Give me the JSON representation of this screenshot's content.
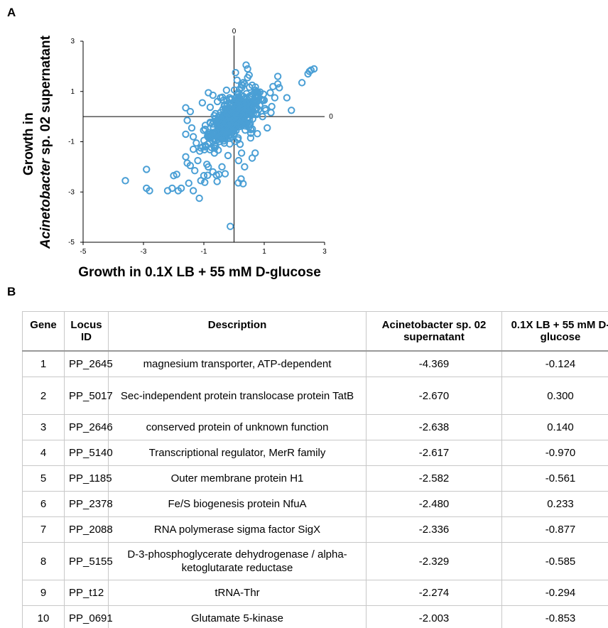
{
  "panel_a_label": "A",
  "panel_b_label": "B",
  "chart_data": {
    "type": "scatter",
    "xlabel": "Growth in 0.1X LB + 55 mM D-glucose",
    "ylabel_parts": [
      "Growth in ",
      "Acinetobacter",
      " sp. 02 supernatant"
    ],
    "xlim": [
      -5,
      3
    ],
    "ylim": [
      -5,
      3
    ],
    "x_ticks": [
      "-5",
      "-3",
      "-1",
      "1",
      "3"
    ],
    "y_ticks": [
      "3",
      "1",
      "-1",
      "-3",
      "-5"
    ],
    "axis_zero_label_x": "0",
    "axis_zero_label_y": "0",
    "grid": false,
    "marker_color": "#4a9fd5",
    "points": [
      [
        -0.124,
        -4.369
      ],
      [
        0.3,
        -2.67
      ],
      [
        0.14,
        -2.638
      ],
      [
        -0.97,
        -2.617
      ],
      [
        -0.561,
        -2.582
      ],
      [
        0.233,
        -2.48
      ],
      [
        -0.877,
        -2.336
      ],
      [
        -0.585,
        -2.329
      ],
      [
        -0.294,
        -2.274
      ],
      [
        -0.853,
        -2.003
      ],
      [
        -3.6,
        -2.55
      ],
      [
        -2.9,
        -2.1
      ],
      [
        -2.9,
        -2.85
      ],
      [
        -2.8,
        -2.95
      ],
      [
        -2.2,
        -2.95
      ],
      [
        -2.05,
        -2.85
      ],
      [
        -1.85,
        -2.95
      ],
      [
        -1.75,
        -2.85
      ],
      [
        -2.0,
        -2.35
      ],
      [
        -1.9,
        -2.3
      ],
      [
        -1.35,
        -2.95
      ],
      [
        -1.15,
        -3.25
      ],
      [
        -1.5,
        -2.65
      ],
      [
        -1.1,
        -2.55
      ],
      [
        -1.55,
        -1.85
      ],
      [
        -1.45,
        -1.95
      ],
      [
        -1.3,
        -2.15
      ],
      [
        -1.0,
        -2.35
      ],
      [
        -1.6,
        -1.6
      ],
      [
        -1.2,
        -1.75
      ],
      [
        -0.9,
        -1.9
      ],
      [
        -0.7,
        -2.2
      ],
      [
        -0.5,
        -2.3
      ],
      [
        -0.4,
        -2.0
      ],
      [
        -1.6,
        0.35
      ],
      [
        -1.45,
        0.2
      ],
      [
        -1.55,
        -0.15
      ],
      [
        -1.4,
        -0.45
      ],
      [
        -1.6,
        -0.7
      ],
      [
        -1.35,
        -0.8
      ],
      [
        -1.25,
        -1.05
      ],
      [
        -1.35,
        -1.3
      ],
      [
        -1.1,
        -1.25
      ],
      [
        -1.05,
        0.55
      ],
      [
        -0.85,
        0.95
      ],
      [
        -0.7,
        0.85
      ],
      [
        -0.55,
        0.6
      ],
      [
        -0.45,
        0.75
      ],
      [
        -0.35,
        0.65
      ],
      [
        -0.25,
        1.05
      ],
      [
        -0.15,
        0.75
      ],
      [
        0.05,
        1.75
      ],
      [
        0.1,
        1.45
      ],
      [
        0.25,
        1.15
      ],
      [
        0.3,
        1.35
      ],
      [
        0.45,
        1.55
      ],
      [
        0.5,
        1.65
      ],
      [
        0.4,
        2.05
      ],
      [
        0.45,
        1.9
      ],
      [
        0.6,
        1.25
      ],
      [
        0.7,
        1.05
      ],
      [
        0.8,
        0.95
      ],
      [
        0.65,
        0.55
      ],
      [
        0.85,
        0.45
      ],
      [
        1.0,
        0.65
      ],
      [
        1.05,
        0.25
      ],
      [
        1.2,
        0.95
      ],
      [
        1.25,
        0.4
      ],
      [
        1.35,
        0.75
      ],
      [
        1.5,
        1.15
      ],
      [
        1.45,
        1.3
      ],
      [
        1.45,
        1.6
      ],
      [
        1.75,
        0.75
      ],
      [
        1.1,
        -0.45
      ],
      [
        1.9,
        0.25
      ],
      [
        2.25,
        1.35
      ],
      [
        2.45,
        1.7
      ],
      [
        2.5,
        1.8
      ],
      [
        2.55,
        1.85
      ],
      [
        2.65,
        1.9
      ],
      [
        0.2,
        -1.1
      ],
      [
        0.55,
        -0.85
      ],
      [
        0.7,
        -1.45
      ],
      [
        0.25,
        -1.45
      ],
      [
        0.15,
        -1.75
      ],
      [
        0.6,
        -1.65
      ],
      [
        0.35,
        -2.0
      ],
      [
        -0.2,
        -1.55
      ],
      [
        -0.65,
        -1.45
      ],
      [
        -0.95,
        -1.15
      ],
      [
        -0.8,
        -0.85
      ],
      [
        0.35,
        1.3
      ]
    ]
  },
  "table": {
    "headers": [
      "Gene",
      "Locus ID",
      "Description",
      "Acinetobacter sp. 02 supernatant",
      "0.1X LB + 55 mM D-glucose"
    ],
    "rows": [
      [
        "1",
        "PP_2645",
        "magnesium transporter, ATP-dependent",
        "-4.369",
        "-0.124"
      ],
      [
        "2",
        "PP_5017",
        "Sec-independent protein translocase protein TatB",
        "-2.670",
        "0.300"
      ],
      [
        "3",
        "PP_2646",
        "conserved protein of unknown function",
        "-2.638",
        "0.140"
      ],
      [
        "4",
        "PP_5140",
        "Transcriptional regulator, MerR family",
        "-2.617",
        "-0.970"
      ],
      [
        "5",
        "PP_1185",
        "Outer membrane protein H1",
        "-2.582",
        "-0.561"
      ],
      [
        "6",
        "PP_2378",
        "Fe/S biogenesis protein NfuA",
        "-2.480",
        "0.233"
      ],
      [
        "7",
        "PP_2088",
        "RNA polymerase sigma factor SigX",
        "-2.336",
        "-0.877"
      ],
      [
        "8",
        "PP_5155",
        "D-3-phosphoglycerate dehydrogenase / alpha-ketoglutarate reductase",
        "-2.329",
        "-0.585"
      ],
      [
        "9",
        "PP_t12",
        "tRNA-Thr",
        "-2.274",
        "-0.294"
      ],
      [
        "10",
        "PP_0691",
        "Glutamate 5-kinase",
        "-2.003",
        "-0.853"
      ]
    ]
  }
}
